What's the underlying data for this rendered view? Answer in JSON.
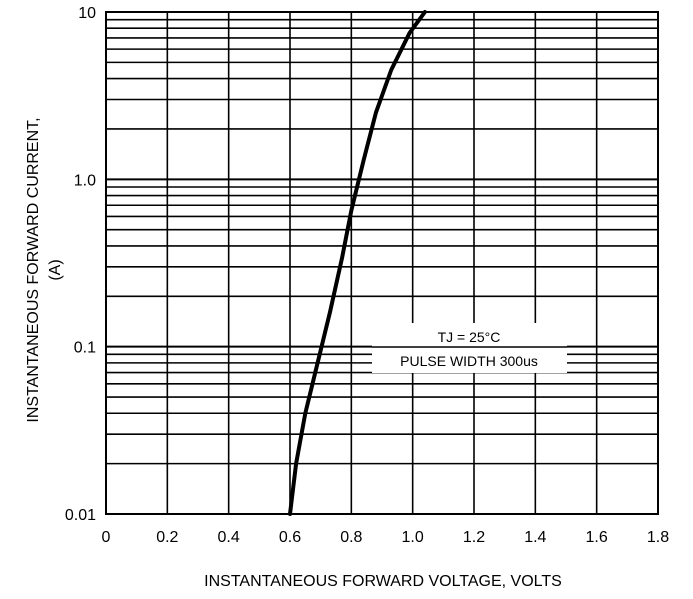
{
  "chart_data": {
    "type": "line",
    "title": "",
    "xlabel": "INSTANTANEOUS FORWARD VOLTAGE, VOLTS",
    "ylabel_line1": "INSTANTANEOUS FORWARD CURRENT,",
    "ylabel_line2": "(A)",
    "xlim": [
      0,
      1.8
    ],
    "ylim": [
      0.01,
      10
    ],
    "yscale": "log",
    "grid": true,
    "x_ticks": [
      0,
      0.2,
      0.4,
      0.6,
      0.8,
      1.0,
      1.2,
      1.4,
      1.6,
      1.8
    ],
    "x_tick_labels": [
      "0",
      "0.2",
      "0.4",
      "0.6",
      "0.8",
      "1.0",
      "1.2",
      "1.4",
      "1.6",
      "1.8"
    ],
    "y_ticks": [
      0.01,
      0.1,
      1.0,
      10
    ],
    "y_tick_labels": [
      "0.01",
      "0.1",
      "1.0",
      "10"
    ],
    "annotation_line1": "TJ = 25°C",
    "annotation_line2": "PULSE WIDTH 300us",
    "series": [
      {
        "color": "#000000",
        "x": [
          0.6,
          0.62,
          0.65,
          0.69,
          0.73,
          0.77,
          0.8,
          0.84,
          0.88,
          0.93,
          0.99,
          1.04
        ],
        "y": [
          0.01,
          0.02,
          0.04,
          0.08,
          0.16,
          0.34,
          0.65,
          1.3,
          2.5,
          4.5,
          7.5,
          10
        ]
      }
    ]
  }
}
